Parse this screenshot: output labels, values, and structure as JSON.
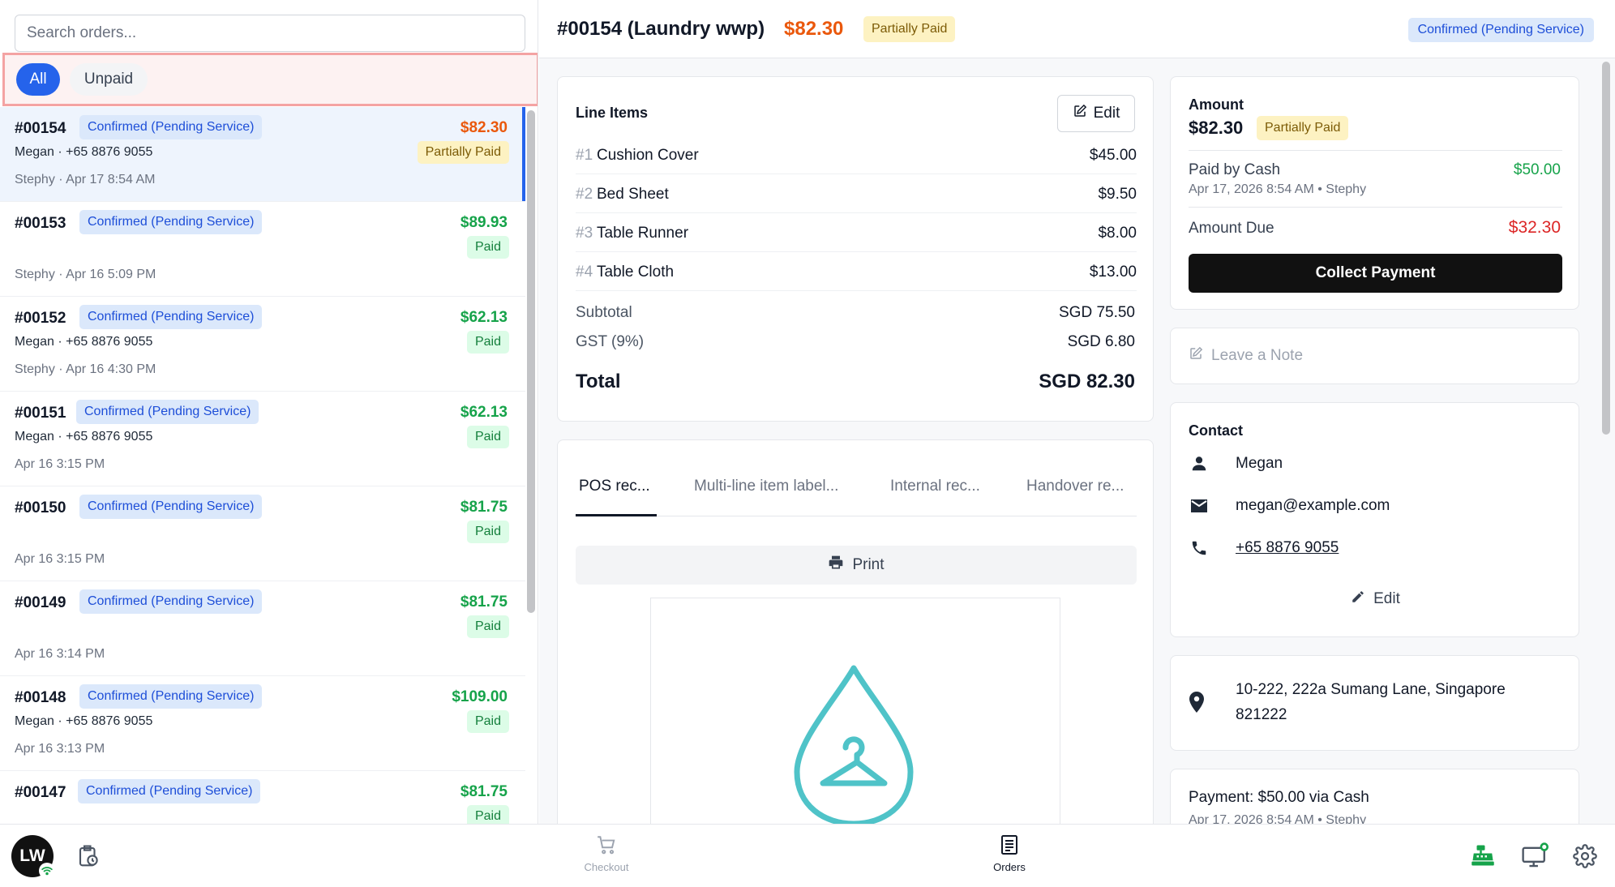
{
  "search": {
    "placeholder": "Search orders..."
  },
  "filters": {
    "all": "All",
    "unpaid": "Unpaid"
  },
  "orders": [
    {
      "number": "#00154",
      "status": "Confirmed (Pending Service)",
      "amount": "$82.30",
      "contact": "Megan · +65 8876 9055",
      "payment": "Partially Paid",
      "meta": "Stephy · Apr 17 8:54 AM"
    },
    {
      "number": "#00153",
      "status": "Confirmed (Pending Service)",
      "amount": "$89.93",
      "contact": "",
      "payment": "Paid",
      "meta": "Stephy · Apr 16 5:09 PM"
    },
    {
      "number": "#00152",
      "status": "Confirmed (Pending Service)",
      "amount": "$62.13",
      "contact": "Megan · +65 8876 9055",
      "payment": "Paid",
      "meta": "Stephy · Apr 16 4:30 PM"
    },
    {
      "number": "#00151",
      "status": "Confirmed (Pending Service)",
      "amount": "$62.13",
      "contact": "Megan · +65 8876 9055",
      "payment": "Paid",
      "meta": "Apr 16 3:15 PM"
    },
    {
      "number": "#00150",
      "status": "Confirmed (Pending Service)",
      "amount": "$81.75",
      "contact": "",
      "payment": "Paid",
      "meta": "Apr 16 3:15 PM"
    },
    {
      "number": "#00149",
      "status": "Confirmed (Pending Service)",
      "amount": "$81.75",
      "contact": "",
      "payment": "Paid",
      "meta": "Apr 16 3:14 PM"
    },
    {
      "number": "#00148",
      "status": "Confirmed (Pending Service)",
      "amount": "$109.00",
      "contact": "Megan · +65 8876 9055",
      "payment": "Paid",
      "meta": "Apr 16 3:13 PM"
    },
    {
      "number": "#00147",
      "status": "Confirmed (Pending Service)",
      "amount": "$81.75",
      "contact": "",
      "payment": "Paid",
      "meta": ""
    }
  ],
  "header": {
    "title": "#00154 (Laundry wwp)",
    "amount": "$82.30",
    "payment_badge": "Partially Paid",
    "status": "Confirmed (Pending Service)"
  },
  "line_items": {
    "title": "Line Items",
    "edit_label": "Edit",
    "items": [
      {
        "index": "#1",
        "name": "Cushion Cover",
        "price": "$45.00"
      },
      {
        "index": "#2",
        "name": "Bed Sheet",
        "price": "$9.50"
      },
      {
        "index": "#3",
        "name": "Table Runner",
        "price": "$8.00"
      },
      {
        "index": "#4",
        "name": "Table Cloth",
        "price": "$13.00"
      }
    ],
    "subtotal_label": "Subtotal",
    "subtotal_value": "SGD 75.50",
    "gst_label": "GST (9%)",
    "gst_value": "SGD 6.80",
    "total_label": "Total",
    "total_value": "SGD 82.30"
  },
  "receipt": {
    "tabs": [
      "POS rec...",
      "Multi-line item label...",
      "Internal rec...",
      "Handover re..."
    ],
    "print_label": "Print"
  },
  "amount_card": {
    "label": "Amount",
    "total": "$82.30",
    "payment_badge": "Partially Paid",
    "paid_label": "Paid by Cash",
    "paid_value": "$50.00",
    "paid_meta": "Apr 17, 2026 8:54 AM • Stephy",
    "due_label": "Amount Due",
    "due_value": "$32.30",
    "collect_label": "Collect Payment"
  },
  "note": {
    "placeholder": "Leave a Note"
  },
  "contact": {
    "title": "Contact",
    "name": "Megan",
    "email": "megan@example.com",
    "phone": "+65 8876 9055",
    "edit_label": "Edit"
  },
  "address": {
    "text": "10-222, 222a Sumang Lane, Singapore 821222"
  },
  "payment_summary": {
    "text": "Payment: $50.00 via Cash",
    "meta": "Apr 17, 2026 8:54 AM • Stephy"
  },
  "bottombar": {
    "avatar_initials": "LW",
    "checkout_label": "Checkout",
    "orders_label": "Orders"
  },
  "colors": {
    "accent": "#2563eb",
    "status_badge_bg": "#dbe8fb",
    "partial_badge_bg": "#fdf2c2",
    "paid_badge_bg": "#dcfce7",
    "amount_orange": "#ea580c",
    "amount_green": "#16a34a",
    "due_red": "#dc2626",
    "register_green": "#16a34a"
  },
  "icons": [
    "history-icon",
    "checkout-cart-icon",
    "orders-list-icon",
    "cash-register-icon",
    "display-icon",
    "gear-icon",
    "edit-icon",
    "print-icon",
    "note-icon",
    "person-icon",
    "mail-icon",
    "phone-icon",
    "pencil-icon",
    "location-pin-icon",
    "wifi-icon",
    "laundry-logo-icon"
  ]
}
